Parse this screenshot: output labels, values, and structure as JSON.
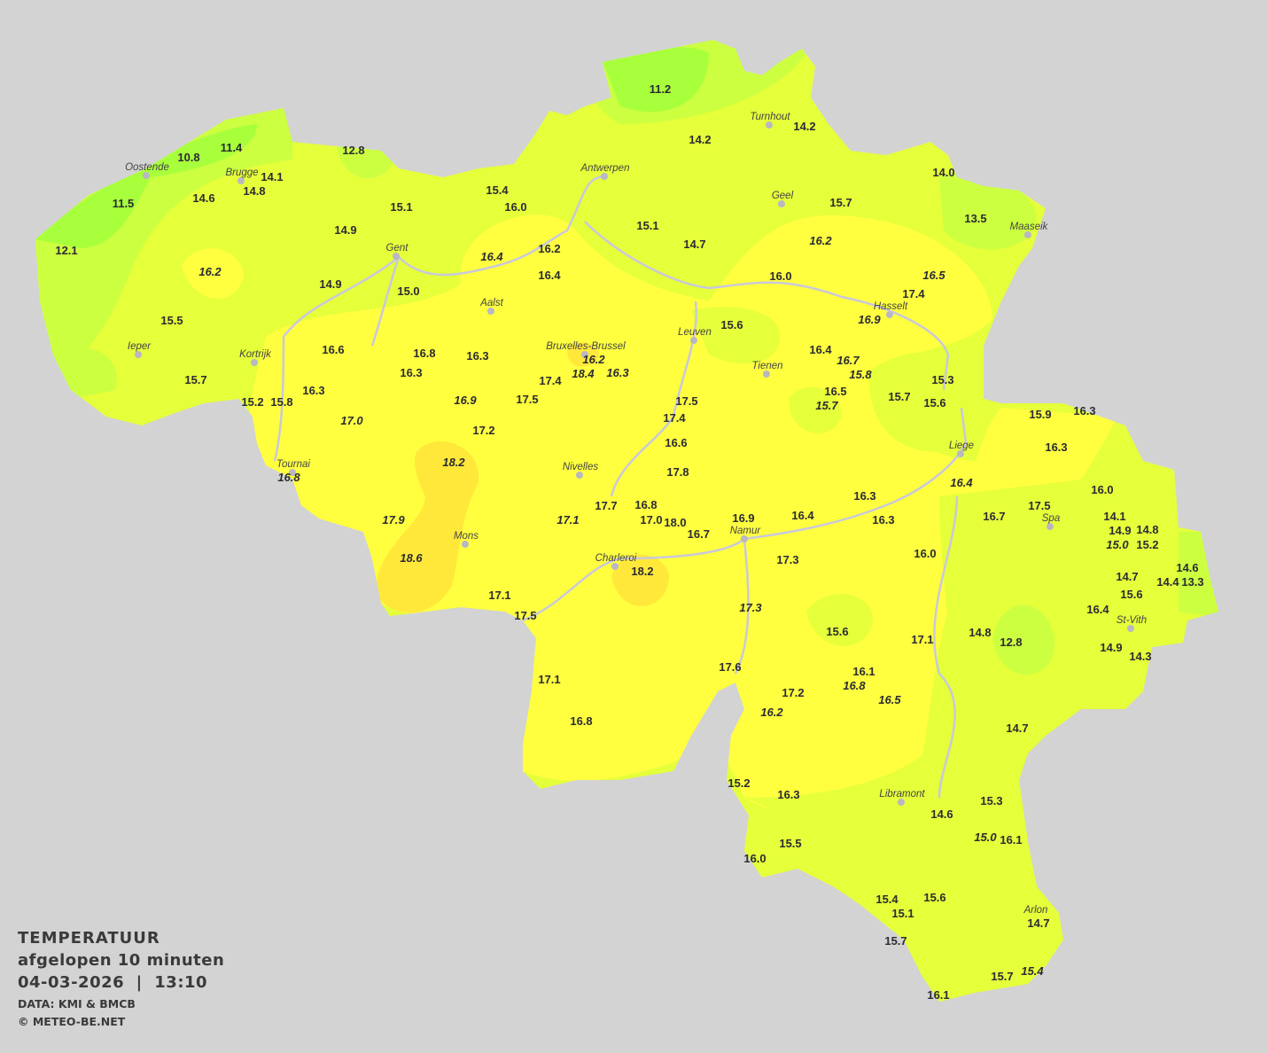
{
  "legend": {
    "title": "TEMPERATUUR",
    "period": "afgelopen 10 minuten",
    "datetime": "04-03-2026  |  13:10",
    "source": "DATA: KMI & BMCB",
    "copyright": "© METEO-BE.NET"
  },
  "colors": {
    "background": "#d3d3d3",
    "base_zone": "#e5ff3a",
    "warm_zone": "#ffff40",
    "hot_zone": "#ffe83a",
    "cool_zone": "#ccff40",
    "cold_zone": "#a8ff3c",
    "rivers": "#c8c8dc",
    "text": "#2b2b33"
  },
  "cities": [
    "Oostende",
    "Brugge",
    "Antwerpen",
    "Turnhout",
    "Geel",
    "Maaseik",
    "Gent",
    "Aalst",
    "Hasselt",
    "Ieper",
    "Kortrijk",
    "Bruxelles-Brussel",
    "Leuven",
    "Tienen",
    "Liege",
    "Tournai",
    "Nivelles",
    "Spa",
    "Mons",
    "Namur",
    "Charleroi",
    "St-Vith",
    "Libramont",
    "Arlon"
  ],
  "readings": [
    {
      "v": "11.2"
    },
    {
      "v": "11.4"
    },
    {
      "v": "10.8"
    },
    {
      "v": "12.8"
    },
    {
      "v": "14.1"
    },
    {
      "v": "14.8"
    },
    {
      "v": "14.6"
    },
    {
      "v": "11.5"
    },
    {
      "v": "12.1"
    },
    {
      "v": "14.2"
    },
    {
      "v": "14.2"
    },
    {
      "v": "15.4"
    },
    {
      "v": "16.0"
    },
    {
      "v": "15.1"
    },
    {
      "v": "14.9"
    },
    {
      "v": "14.0"
    },
    {
      "v": "15.7"
    },
    {
      "v": "13.5"
    },
    {
      "v": "15.1"
    },
    {
      "v": "14.7"
    },
    {
      "v": "16.2",
      "italic": true
    },
    {
      "v": "16.2",
      "italic": true
    },
    {
      "v": "16.4",
      "italic": true
    },
    {
      "v": "16.2"
    },
    {
      "v": "16.4"
    },
    {
      "v": "16.0"
    },
    {
      "v": "16.5",
      "italic": true
    },
    {
      "v": "17.4"
    },
    {
      "v": "16.9",
      "italic": true
    },
    {
      "v": "14.9"
    },
    {
      "v": "15.0"
    },
    {
      "v": "15.5"
    },
    {
      "v": "15.6"
    },
    {
      "v": "16.6"
    },
    {
      "v": "16.8"
    },
    {
      "v": "16.3"
    },
    {
      "v": "16.2",
      "italic": true
    },
    {
      "v": "18.4",
      "italic": true
    },
    {
      "v": "16.3",
      "italic": true
    },
    {
      "v": "16.3"
    },
    {
      "v": "15.7"
    },
    {
      "v": "16.4"
    },
    {
      "v": "16.7",
      "italic": true
    },
    {
      "v": "15.8",
      "italic": true
    },
    {
      "v": "15.3"
    },
    {
      "v": "17.4"
    },
    {
      "v": "16.3"
    },
    {
      "v": "15.2"
    },
    {
      "v": "15.8"
    },
    {
      "v": "16.9",
      "italic": true
    },
    {
      "v": "17.5"
    },
    {
      "v": "17.5"
    },
    {
      "v": "16.5"
    },
    {
      "v": "15.7",
      "italic": true
    },
    {
      "v": "15.7"
    },
    {
      "v": "15.6"
    },
    {
      "v": "15.9"
    },
    {
      "v": "16.3"
    },
    {
      "v": "17.0",
      "italic": true
    },
    {
      "v": "17.4"
    },
    {
      "v": "17.2"
    },
    {
      "v": "16.6"
    },
    {
      "v": "16.3"
    },
    {
      "v": "18.2",
      "italic": true
    },
    {
      "v": "16.8",
      "italic": true
    },
    {
      "v": "17.8"
    },
    {
      "v": "16.4",
      "italic": true
    },
    {
      "v": "16.0"
    },
    {
      "v": "16.3"
    },
    {
      "v": "17.7"
    },
    {
      "v": "16.8"
    },
    {
      "v": "16.7"
    },
    {
      "v": "17.5"
    },
    {
      "v": "14.1"
    },
    {
      "v": "16.4"
    },
    {
      "v": "17.9",
      "italic": true
    },
    {
      "v": "17.1",
      "italic": true
    },
    {
      "v": "17.0"
    },
    {
      "v": "18.0"
    },
    {
      "v": "16.9"
    },
    {
      "v": "16.3"
    },
    {
      "v": "14.9"
    },
    {
      "v": "14.8"
    },
    {
      "v": "16.7"
    },
    {
      "v": "15.0",
      "italic": true
    },
    {
      "v": "15.2"
    },
    {
      "v": "16.0"
    },
    {
      "v": "18.6",
      "italic": true
    },
    {
      "v": "17.3"
    },
    {
      "v": "14.6"
    },
    {
      "v": "18.2"
    },
    {
      "v": "14.7"
    },
    {
      "v": "14.4"
    },
    {
      "v": "13.3"
    },
    {
      "v": "15.6"
    },
    {
      "v": "17.1"
    },
    {
      "v": "17.3",
      "italic": true
    },
    {
      "v": "16.4"
    },
    {
      "v": "17.5"
    },
    {
      "v": "15.6"
    },
    {
      "v": "14.8"
    },
    {
      "v": "17.1"
    },
    {
      "v": "12.8"
    },
    {
      "v": "14.9"
    },
    {
      "v": "14.3"
    },
    {
      "v": "17.6"
    },
    {
      "v": "16.1"
    },
    {
      "v": "17.1"
    },
    {
      "v": "16.8",
      "italic": true
    },
    {
      "v": "17.2"
    },
    {
      "v": "16.5",
      "italic": true
    },
    {
      "v": "16.2",
      "italic": true
    },
    {
      "v": "16.8"
    },
    {
      "v": "14.7"
    },
    {
      "v": "15.2"
    },
    {
      "v": "16.3"
    },
    {
      "v": "15.3"
    },
    {
      "v": "14.6"
    },
    {
      "v": "15.0",
      "italic": true
    },
    {
      "v": "16.1"
    },
    {
      "v": "15.5"
    },
    {
      "v": "16.0"
    },
    {
      "v": "15.4"
    },
    {
      "v": "15.6"
    },
    {
      "v": "15.1"
    },
    {
      "v": "14.7"
    },
    {
      "v": "15.7"
    },
    {
      "v": "15.7"
    },
    {
      "v": "15.4",
      "italic": true
    },
    {
      "v": "16.1"
    }
  ]
}
